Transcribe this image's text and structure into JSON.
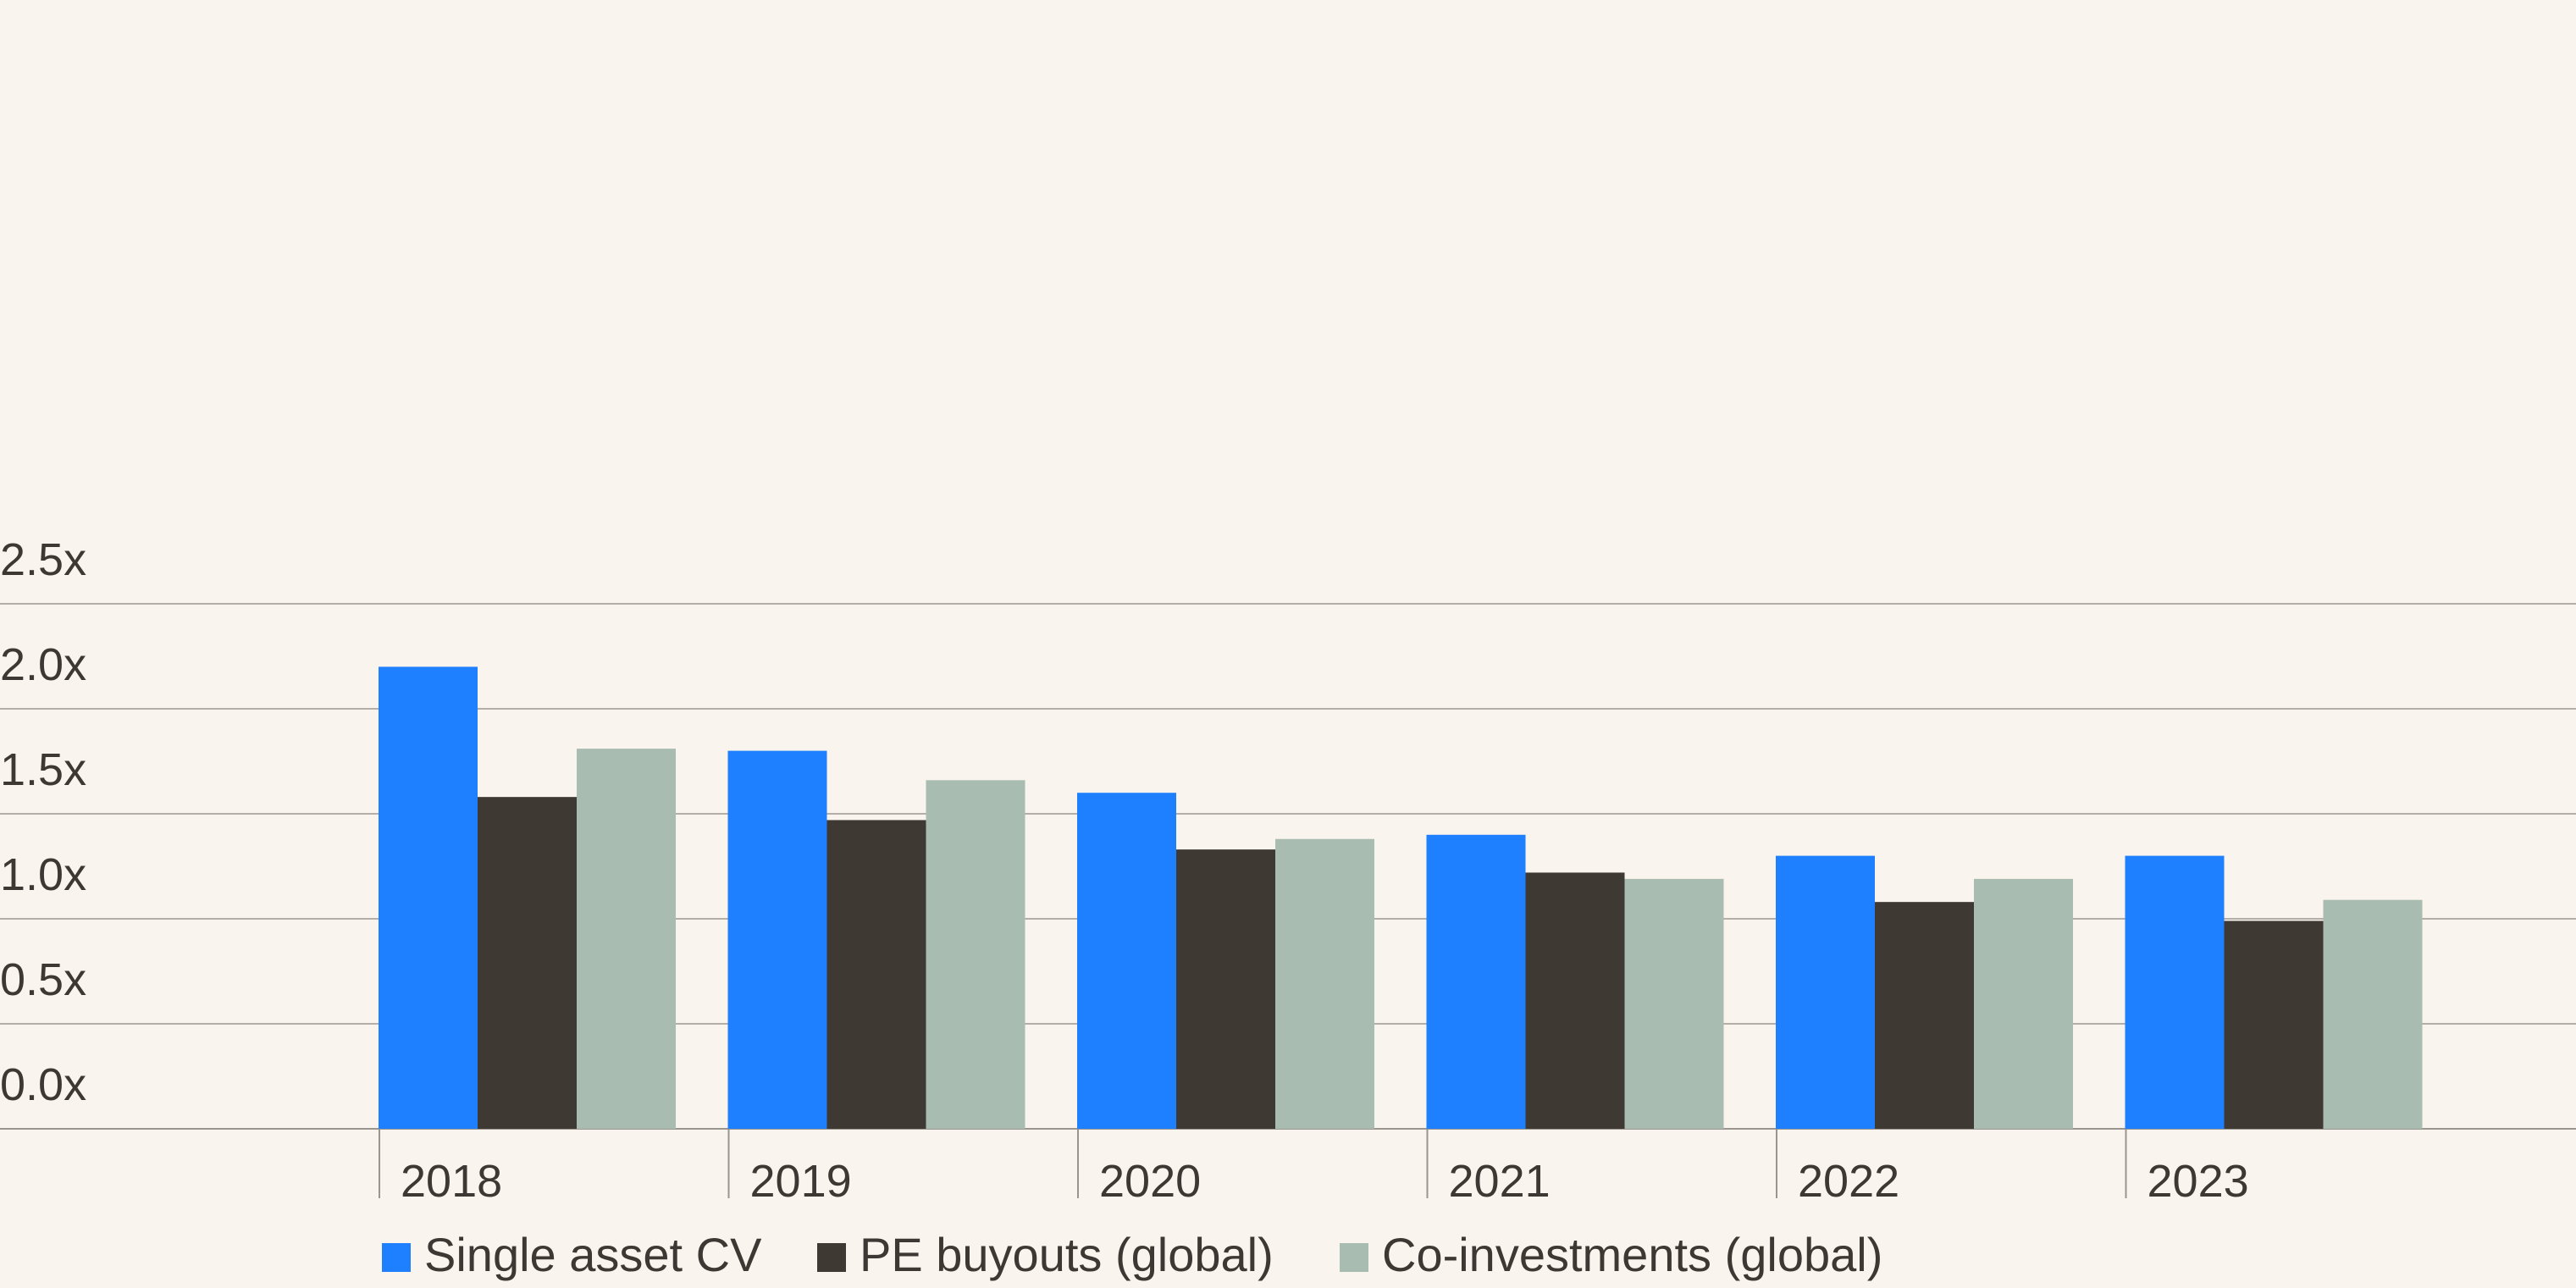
{
  "chart_data": {
    "type": "bar",
    "categories": [
      "2018",
      "2019",
      "2020",
      "2021",
      "2022",
      "2023"
    ],
    "series": [
      {
        "name": "Single asset CV",
        "color": "#1e80ff",
        "values": [
          2.2,
          1.8,
          1.6,
          1.4,
          1.3,
          1.3
        ]
      },
      {
        "name": "PE buyouts (global)",
        "color": "#3e3933",
        "values": [
          1.58,
          1.47,
          1.33,
          1.22,
          1.08,
          0.99
        ]
      },
      {
        "name": "Co-investments (global)",
        "color": "#a9bcb1",
        "values": [
          1.81,
          1.66,
          1.38,
          1.19,
          1.19,
          1.09
        ]
      }
    ],
    "yticks": [
      "0.0x",
      "0.5x",
      "1.0x",
      "1.5x",
      "2.0x",
      "2.5x"
    ],
    "ylim": [
      0,
      2.5
    ],
    "grid": true,
    "legend": "bottom-left",
    "title": "",
    "xlabel": "",
    "ylabel": ""
  }
}
